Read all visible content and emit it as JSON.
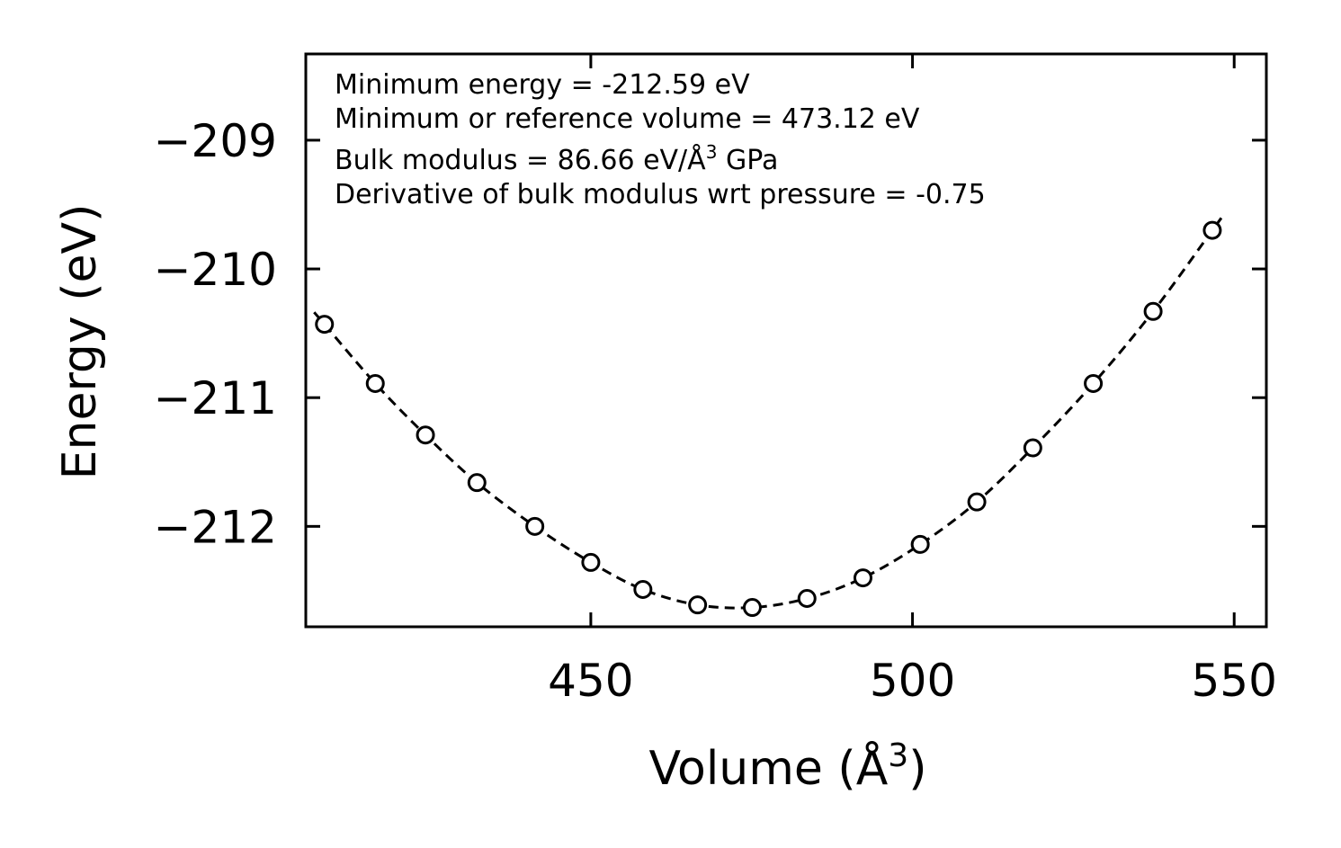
{
  "chart_data": {
    "type": "scatter",
    "title": "",
    "xlabel": "Volume (Å³)",
    "ylabel": "Energy (eV)",
    "xlim": [
      405.7,
      555.0
    ],
    "ylim": [
      -212.78,
      -208.33
    ],
    "xticks": [
      {
        "value": 450,
        "label": "450"
      },
      {
        "value": 500,
        "label": "500"
      },
      {
        "value": 550,
        "label": "550"
      }
    ],
    "yticks": [
      {
        "value": -209,
        "label": "−209"
      },
      {
        "value": -210,
        "label": "−210"
      },
      {
        "value": -211,
        "label": "−211"
      },
      {
        "value": -212,
        "label": "−212"
      }
    ],
    "grid": false,
    "series": [
      {
        "name": "data",
        "style": "open-circle",
        "points": [
          {
            "x": 408.6,
            "y": -210.43
          },
          {
            "x": 416.5,
            "y": -210.89
          },
          {
            "x": 424.3,
            "y": -211.29
          },
          {
            "x": 432.3,
            "y": -211.66
          },
          {
            "x": 441.3,
            "y": -212.0
          },
          {
            "x": 450.0,
            "y": -212.28
          },
          {
            "x": 458.1,
            "y": -212.49
          },
          {
            "x": 466.6,
            "y": -212.61
          },
          {
            "x": 475.1,
            "y": -212.63
          },
          {
            "x": 483.6,
            "y": -212.56
          },
          {
            "x": 492.3,
            "y": -212.4
          },
          {
            "x": 501.2,
            "y": -212.14
          },
          {
            "x": 510.0,
            "y": -211.81
          },
          {
            "x": 518.7,
            "y": -211.39
          },
          {
            "x": 528.1,
            "y": -210.89
          },
          {
            "x": 537.4,
            "y": -210.33
          },
          {
            "x": 546.6,
            "y": -209.7
          }
        ]
      },
      {
        "name": "fit",
        "style": "dashed-line",
        "vmin": 407.0,
        "vmax": 548.0,
        "e0": -212.59,
        "v0": 473.12
      }
    ],
    "annotations": {
      "min_energy": "Minimum energy = -212.59 eV",
      "min_volume": "Minimum or reference volume = 473.12 eV",
      "bulk_modulus_prefix": "Bulk modulus = 86.66 eV/Å",
      "bulk_modulus_exp": "3",
      "bulk_modulus_suffix": " GPa",
      "derivative": "Derivative of bulk modulus wrt pressure = -0.75"
    },
    "axis_title_parts": {
      "x_main": "Volume (Å",
      "x_exp": "3",
      "x_close": ")",
      "y": "Energy (eV)"
    }
  }
}
